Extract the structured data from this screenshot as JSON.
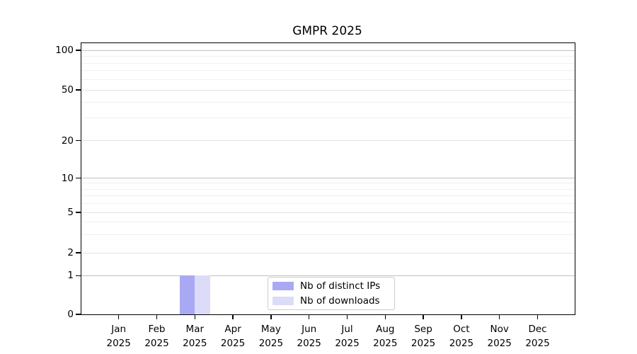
{
  "chart_data": {
    "type": "bar",
    "title": "GMPR 2025",
    "categories": [
      "Jan 2025",
      "Feb 2025",
      "Mar 2025",
      "Apr 2025",
      "May 2025",
      "Jun 2025",
      "Jul 2025",
      "Aug 2025",
      "Sep 2025",
      "Oct 2025",
      "Nov 2025",
      "Dec 2025"
    ],
    "series": [
      {
        "name": "Nb of distinct IPs",
        "color": "#a9a9f3",
        "values": [
          0,
          0,
          1,
          0,
          0,
          0,
          0,
          0,
          0,
          0,
          0,
          0
        ]
      },
      {
        "name": "Nb of downloads",
        "color": "#dcdcf9",
        "values": [
          0,
          0,
          1,
          0,
          0,
          0,
          0,
          0,
          0,
          0,
          0,
          0
        ]
      }
    ],
    "xlabel": "",
    "ylabel": "",
    "y_axis": {
      "scale": "log-like (0 baseline with compressed log decades)",
      "tick_labels": [
        0,
        1,
        2,
        5,
        10,
        20,
        50,
        100
      ],
      "major_gridline_values": [
        1,
        10,
        100
      ],
      "minor_gridline_values": [
        2,
        3,
        4,
        5,
        6,
        7,
        8,
        9,
        20,
        30,
        40,
        50,
        60,
        70,
        80,
        90
      ],
      "ylim": [
        0,
        114
      ]
    },
    "grid": true,
    "legend_position": "lower center inside plot",
    "colors": {
      "axis": "#000000",
      "major_grid": "#c0c0c0",
      "labeled_minor_grid": "#e2e2e2",
      "minor_grid": "#f0f0f0",
      "legend_border": "#cccccc",
      "background": "#ffffff"
    }
  }
}
